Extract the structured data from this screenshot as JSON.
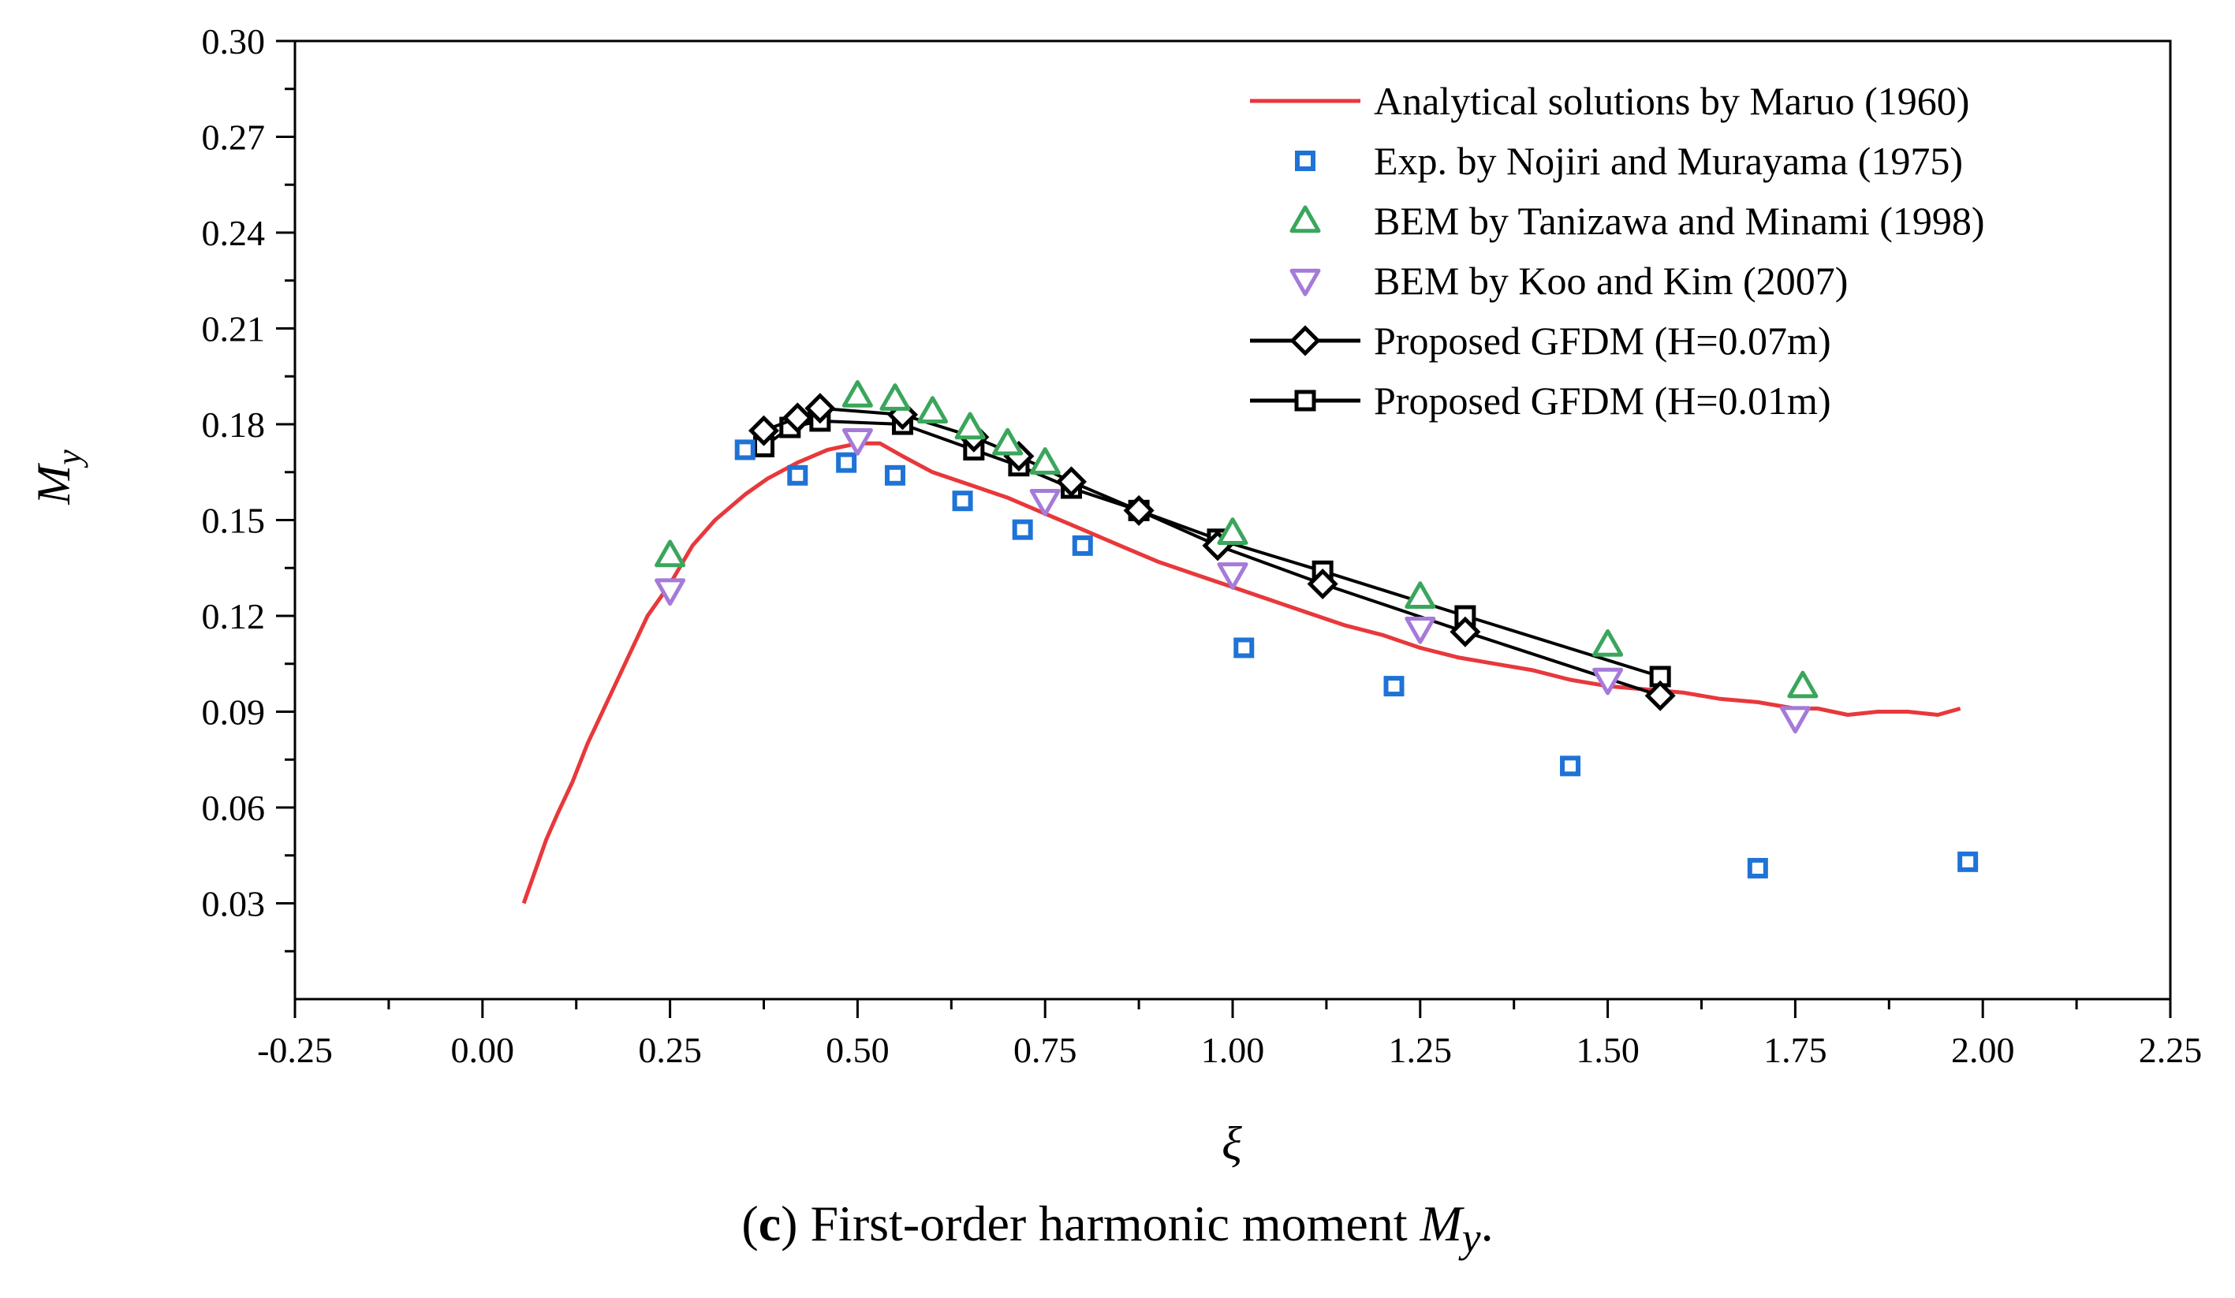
{
  "caption": {
    "tag": "c",
    "text": "First-order harmonic moment ",
    "symbol": "M",
    "symbol_sub": "y",
    "end": "."
  },
  "colors": {
    "analytical": "#e8383b",
    "exp": "#1f73d6",
    "bem_tanizawa": "#3aa65c",
    "bem_koo": "#a57ad8",
    "gfdm": "#000000"
  },
  "chart_data": {
    "type": "line",
    "title": "",
    "xlabel": "ξ",
    "ylabel": "M",
    "ylabel_sub": "y",
    "xlim": [
      -0.25,
      2.25
    ],
    "ylim": [
      0.0,
      0.3
    ],
    "xticks": [
      "-0.25",
      "0.00",
      "0.25",
      "0.50",
      "0.75",
      "1.00",
      "1.25",
      "1.50",
      "1.75",
      "2.00",
      "2.25"
    ],
    "yticks": [
      "0.03",
      "0.06",
      "0.09",
      "0.12",
      "0.15",
      "0.18",
      "0.21",
      "0.24",
      "0.27",
      "0.30"
    ],
    "legend_position": "top-right",
    "series": [
      {
        "name": "Analytical solutions by Maruo (1960)",
        "style": "line",
        "x": [
          0.055,
          0.07,
          0.085,
          0.1,
          0.12,
          0.14,
          0.16,
          0.18,
          0.2,
          0.22,
          0.25,
          0.28,
          0.31,
          0.35,
          0.38,
          0.42,
          0.46,
          0.5,
          0.53,
          0.56,
          0.6,
          0.65,
          0.7,
          0.75,
          0.8,
          0.85,
          0.9,
          0.95,
          1.0,
          1.05,
          1.1,
          1.15,
          1.2,
          1.25,
          1.3,
          1.35,
          1.4,
          1.45,
          1.5,
          1.55,
          1.6,
          1.65,
          1.7,
          1.75,
          1.78,
          1.82,
          1.86,
          1.9,
          1.94,
          1.97
        ],
        "values": [
          0.03,
          0.04,
          0.05,
          0.058,
          0.068,
          0.08,
          0.09,
          0.1,
          0.11,
          0.12,
          0.13,
          0.142,
          0.15,
          0.158,
          0.163,
          0.168,
          0.172,
          0.174,
          0.174,
          0.17,
          0.165,
          0.161,
          0.157,
          0.152,
          0.147,
          0.142,
          0.137,
          0.133,
          0.129,
          0.125,
          0.121,
          0.117,
          0.114,
          0.11,
          0.107,
          0.105,
          0.103,
          0.1,
          0.098,
          0.097,
          0.096,
          0.094,
          0.093,
          0.091,
          0.091,
          0.089,
          0.09,
          0.09,
          0.089,
          0.091
        ]
      },
      {
        "name": "Exp. by Nojiri and Murayama (1975)",
        "style": "square",
        "x": [
          0.35,
          0.42,
          0.485,
          0.55,
          0.64,
          0.72,
          0.8,
          1.015,
          1.215,
          1.45,
          1.7,
          1.98
        ],
        "values": [
          0.172,
          0.164,
          0.168,
          0.164,
          0.156,
          0.147,
          0.142,
          0.11,
          0.098,
          0.073,
          0.041,
          0.043
        ]
      },
      {
        "name": "BEM by Tanizawa and Minami (1998)",
        "style": "triangle-up",
        "x": [
          0.25,
          0.5,
          0.55,
          0.6,
          0.65,
          0.7,
          0.75,
          1.0,
          1.25,
          1.5,
          1.76
        ],
        "values": [
          0.139,
          0.189,
          0.188,
          0.184,
          0.179,
          0.174,
          0.168,
          0.146,
          0.126,
          0.111,
          0.098
        ]
      },
      {
        "name": "BEM by Koo and Kim (2007)",
        "style": "triangle-down",
        "x": [
          0.25,
          0.5,
          0.75,
          1.0,
          1.25,
          1.5,
          1.75
        ],
        "values": [
          0.128,
          0.175,
          0.156,
          0.133,
          0.116,
          0.1,
          0.088
        ]
      },
      {
        "name": "Proposed GFDM (H=0.07m)",
        "style": "line-diamond",
        "x": [
          0.375,
          0.42,
          0.45,
          0.56,
          0.655,
          0.715,
          0.785,
          0.875,
          0.98,
          1.12,
          1.31,
          1.57
        ],
        "values": [
          0.178,
          0.182,
          0.185,
          0.183,
          0.176,
          0.17,
          0.162,
          0.153,
          0.142,
          0.13,
          0.115,
          0.095
        ]
      },
      {
        "name": "Proposed GFDM (H=0.01m)",
        "style": "line-square",
        "x": [
          0.375,
          0.41,
          0.45,
          0.56,
          0.655,
          0.715,
          0.785,
          0.875,
          0.98,
          1.12,
          1.31,
          1.57
        ],
        "values": [
          0.173,
          0.179,
          0.181,
          0.18,
          0.172,
          0.167,
          0.16,
          0.153,
          0.144,
          0.134,
          0.12,
          0.101
        ]
      }
    ]
  }
}
